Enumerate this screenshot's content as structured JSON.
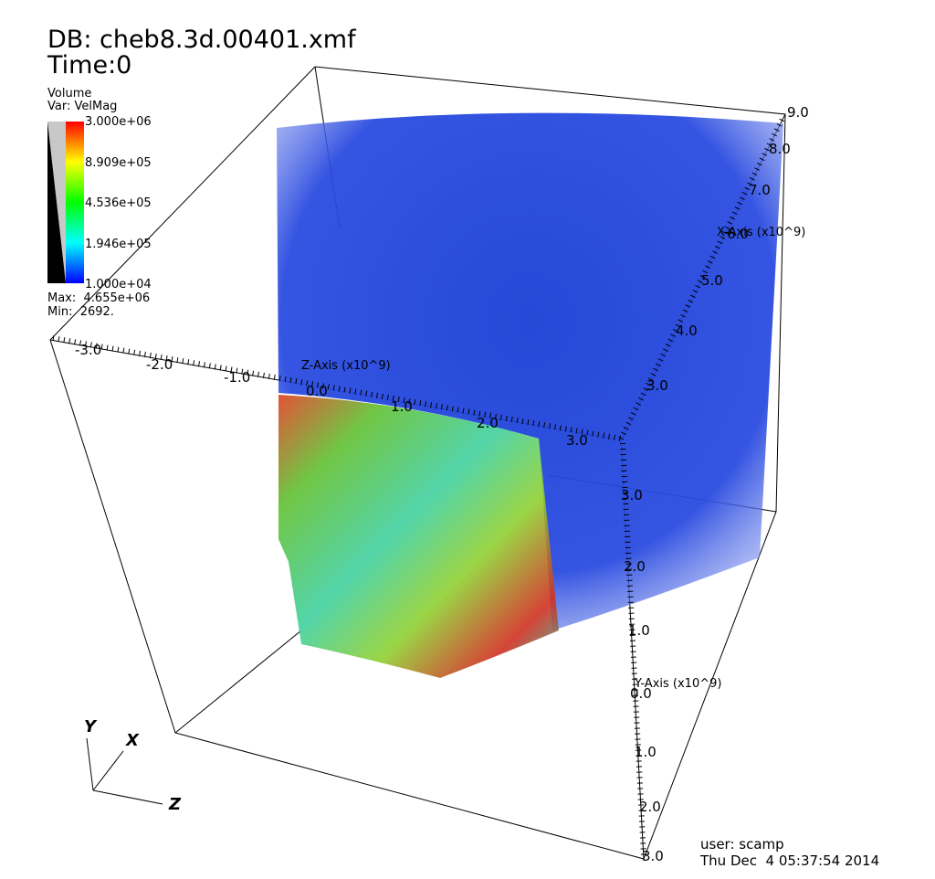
{
  "header": {
    "database": "DB: cheb8.3d.00401.xmf",
    "time": "Time:0"
  },
  "legend": {
    "plot": "Volume",
    "variable": "Var: VelMag",
    "labels": [
      "3.000e+06",
      "8.909e+05",
      "4.536e+05",
      "1.946e+05",
      "1.000e+04"
    ],
    "max": "Max:  4.655e+06",
    "min": "Min:  2692."
  },
  "axes": {
    "z": {
      "title": "Z-Axis (x10^9)",
      "labels": [
        "-3.0",
        "-2.0",
        "-1.0",
        "0.0",
        "1.0",
        "2.0",
        "3.0"
      ]
    },
    "x": {
      "title": "X-Axis (x10^9)",
      "labels": [
        "9.0",
        "8.0",
        "7.0",
        "6.0",
        "5.0",
        "4.0",
        "3.0"
      ]
    },
    "y": {
      "title": "Y-Axis (x10^9)",
      "labels": [
        "3.0",
        "2.0",
        "1.0",
        "0.0",
        "1.0",
        "2.0",
        "3.0"
      ]
    }
  },
  "triad": {
    "x": "X",
    "y": "Y",
    "z": "Z"
  },
  "footer": {
    "user": "user: scamp",
    "date": "Thu Dec  4 05:37:54 2014"
  }
}
